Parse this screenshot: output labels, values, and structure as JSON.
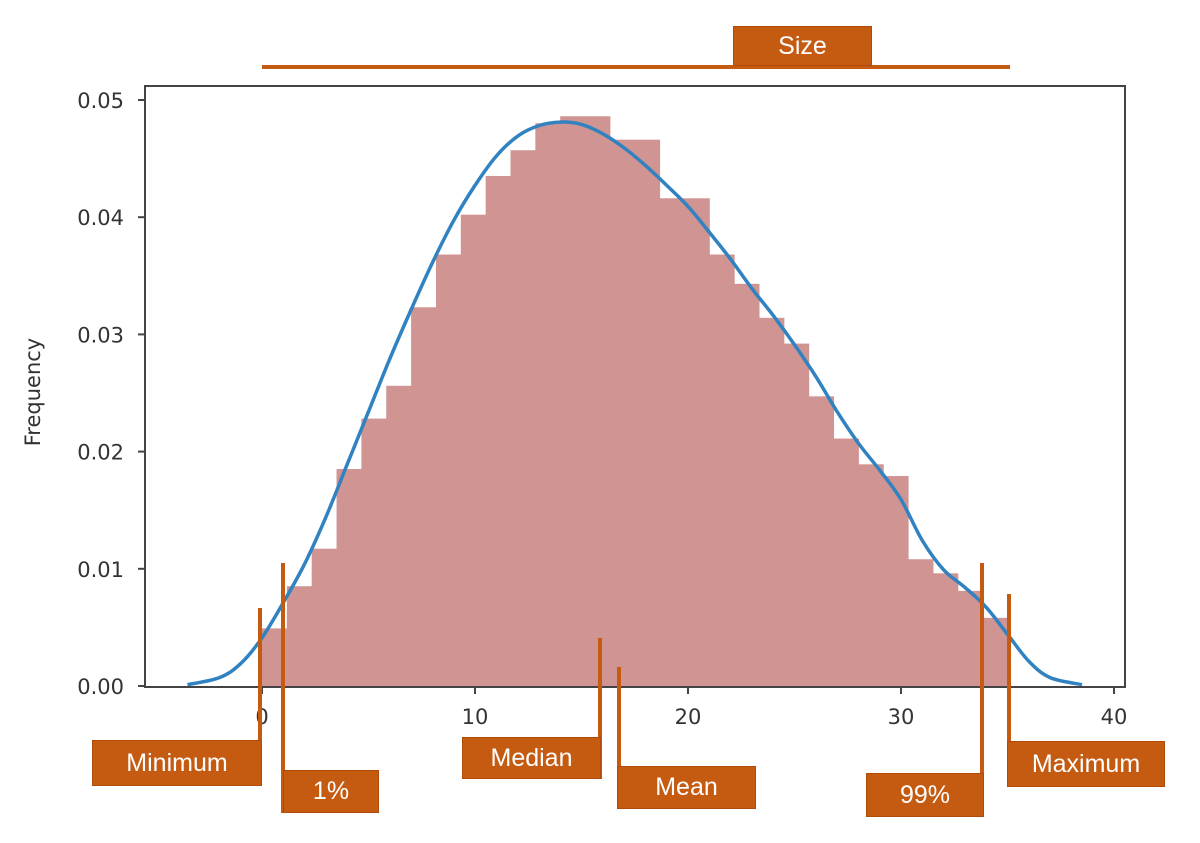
{
  "chart_data": {
    "type": "bar",
    "title": "",
    "xlabel": "",
    "ylabel": "Frequency",
    "xlim": [
      -5.5,
      41
    ],
    "ylim": [
      0,
      0.051
    ],
    "xticks": [
      0,
      10,
      20,
      30,
      40
    ],
    "xtick_labels": [
      "0",
      "10",
      "20",
      "30",
      "40"
    ],
    "yticks": [
      0,
      0.01,
      0.02,
      0.03,
      0.04,
      0.05
    ],
    "ytick_labels": [
      "0.00",
      "0.01",
      "0.02",
      "0.03",
      "0.04",
      "0.05"
    ],
    "grid": false,
    "histogram": {
      "bin_start": 0,
      "bin_end": 35,
      "color": "#D09492",
      "values": [
        0.005,
        0.0086,
        0.0118,
        0.0186,
        0.0229,
        0.0257,
        0.0324,
        0.0369,
        0.0403,
        0.0436,
        0.0458,
        0.0481,
        0.0487,
        0.0487,
        0.0467,
        0.0467,
        0.0417,
        0.0417,
        0.0369,
        0.0344,
        0.0315,
        0.0293,
        0.0248,
        0.0212,
        0.019,
        0.018,
        0.0109,
        0.0097,
        0.0082,
        0.0059
      ]
    },
    "kde": {
      "color": "#3182C0",
      "x": [
        -3.5,
        -2,
        -1,
        0,
        1,
        2,
        3,
        4,
        5,
        6,
        7,
        8,
        9,
        10,
        11,
        12,
        13,
        14,
        15,
        16,
        17,
        18,
        19,
        20,
        21,
        22,
        23,
        24,
        25,
        26,
        27,
        28,
        29,
        30,
        31,
        32,
        33,
        34,
        35,
        36,
        37,
        38.5
      ],
      "y": [
        0.0002,
        0.0008,
        0.002,
        0.0042,
        0.0072,
        0.0105,
        0.0145,
        0.019,
        0.0235,
        0.028,
        0.0322,
        0.0362,
        0.0398,
        0.0428,
        0.0453,
        0.047,
        0.0479,
        0.0482,
        0.048,
        0.0472,
        0.046,
        0.0445,
        0.0428,
        0.041,
        0.0388,
        0.0365,
        0.034,
        0.0317,
        0.0292,
        0.0265,
        0.0235,
        0.0208,
        0.0185,
        0.016,
        0.0125,
        0.01,
        0.0085,
        0.0068,
        0.0045,
        0.0022,
        0.0008,
        0.0002
      ]
    },
    "annotations": {
      "color": "#C55A11",
      "size": {
        "label": "Size",
        "from": 0,
        "to": 35
      },
      "markers": [
        {
          "label": "Minimum",
          "x": 0
        },
        {
          "label": "1%",
          "x": 1
        },
        {
          "label": "Median",
          "x": 15.9
        },
        {
          "label": "Mean",
          "x": 16.8
        },
        {
          "label": "99%",
          "x": 33.8
        },
        {
          "label": "Maximum",
          "x": 35
        }
      ]
    }
  }
}
